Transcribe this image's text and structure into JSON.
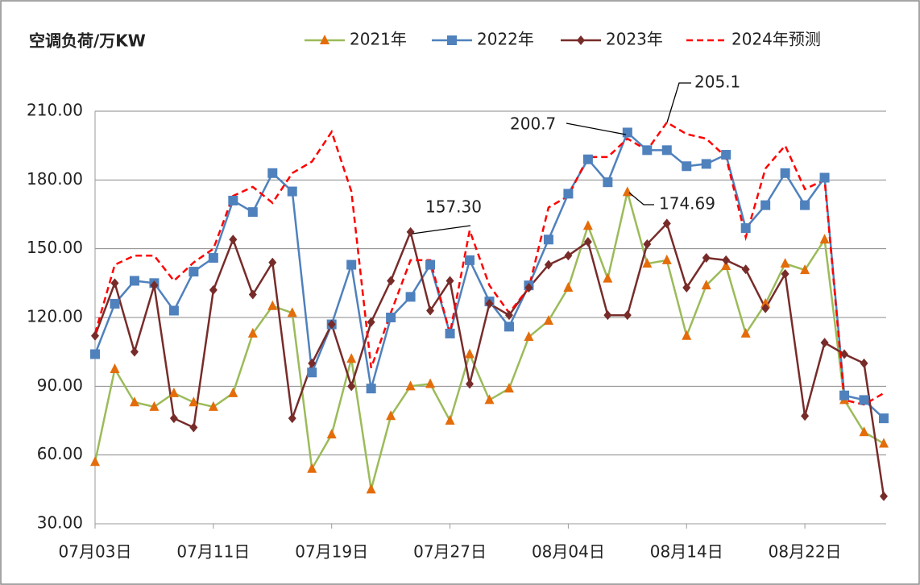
{
  "chart_data": {
    "type": "line",
    "y_axis_title": "空调负荷/万KW",
    "categories": [
      "07月03日",
      null,
      null,
      null,
      null,
      null,
      "07月11日",
      null,
      null,
      null,
      null,
      null,
      "07月19日",
      null,
      null,
      null,
      null,
      null,
      "07月27日",
      null,
      null,
      null,
      null,
      null,
      "08月04日",
      null,
      null,
      null,
      null,
      null,
      "08月14日",
      null,
      null,
      null,
      null,
      null,
      "08月22日",
      null,
      null,
      null,
      null
    ],
    "series": [
      {
        "name": "2021年",
        "color": "#9bbb59",
        "marker": "triangle",
        "marker_color": "#e46c0a",
        "dashed": false,
        "values": [
          57,
          97.5,
          83,
          81,
          87,
          83,
          81,
          87,
          113,
          125,
          122,
          54,
          69,
          102,
          45,
          77,
          90,
          91,
          75,
          104,
          84,
          89,
          111.5,
          118.6,
          133,
          160,
          137,
          174.69,
          143.5,
          145,
          112,
          134,
          142.5,
          113,
          126,
          143.5,
          140.7,
          154,
          84,
          70,
          65
        ]
      },
      {
        "name": "2022年",
        "color": "#4f81bd",
        "marker": "square",
        "marker_color": "#4f81bd",
        "dashed": false,
        "values": [
          104,
          126,
          136,
          135,
          123,
          140,
          146,
          171,
          166,
          183,
          175,
          96,
          117,
          143,
          89,
          120,
          129,
          143,
          113,
          145,
          127,
          116,
          134,
          154,
          174,
          189,
          179,
          200.7,
          193,
          193,
          186,
          187,
          191,
          159,
          169,
          183,
          169,
          181,
          86,
          84,
          76
        ]
      },
      {
        "name": "2023年",
        "color": "#772c2a",
        "marker": "diamond",
        "marker_color": "#772c2a",
        "dashed": false,
        "values": [
          112,
          135,
          105,
          134,
          76,
          72,
          132,
          154,
          130,
          144,
          76,
          100,
          117,
          90,
          118,
          136,
          157.3,
          123,
          136,
          91,
          126,
          121,
          133,
          143,
          147,
          153,
          121,
          121,
          152,
          161,
          133,
          146,
          145,
          141,
          124,
          139,
          77,
          109,
          104,
          100,
          42
        ]
      },
      {
        "name": "2024年预测",
        "color": "#ff0000",
        "marker": "none",
        "marker_color": "#ff0000",
        "dashed": true,
        "values": [
          113,
          143,
          147,
          147,
          136,
          144,
          150,
          173,
          177,
          170,
          183,
          188,
          201,
          175,
          98,
          122,
          145,
          145,
          113,
          158,
          134,
          122,
          133,
          168,
          173,
          190,
          190,
          198,
          193,
          205.1,
          200,
          198,
          190,
          155,
          185,
          195,
          176,
          180,
          84,
          82,
          87
        ]
      }
    ],
    "annotations": [
      "205.1",
      "200.7",
      "157.30",
      "174.69"
    ],
    "ylim": [
      30,
      210
    ],
    "yticks": [
      {
        "value": 30,
        "label": "30.00"
      },
      {
        "value": 60,
        "label": "60.00"
      },
      {
        "value": 90,
        "label": "90.00"
      },
      {
        "value": 120,
        "label": "120.00"
      },
      {
        "value": 150,
        "label": "150.00"
      },
      {
        "value": 180,
        "label": "180.00"
      },
      {
        "value": 210,
        "label": "210.00"
      }
    ],
    "grid": true,
    "legend": "top"
  }
}
